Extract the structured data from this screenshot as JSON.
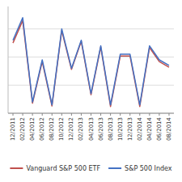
{
  "chart_data": {
    "type": "line",
    "categories": [
      "12/2011",
      "02/2012",
      "04/2012",
      "06/2012",
      "08/2012",
      "10/2012",
      "12/2012",
      "02/2013",
      "04/2013",
      "06/2013",
      "08/2013",
      "10/2013",
      "12/2013",
      "02/2014",
      "04/2014",
      "06/2014",
      "08/2014"
    ],
    "series": [
      {
        "name": "Vanguard S&P 500 ETF",
        "color": "#C0504D",
        "values": [
          7.5,
          11.5,
          -3.2,
          4.2,
          -3.7,
          9.7,
          2.8,
          7.8,
          -1.7,
          6.8,
          -3.8,
          5.2,
          5.2,
          -3.8,
          6.7,
          4.2,
          3.2
        ]
      },
      {
        "name": "S&P 500 Index",
        "color": "#4472C4",
        "values": [
          8.0,
          12.0,
          -3.0,
          4.5,
          -3.5,
          10.0,
          3.0,
          8.0,
          -1.5,
          7.0,
          -3.5,
          5.5,
          5.5,
          -3.5,
          7.0,
          4.5,
          3.5
        ]
      }
    ],
    "ylim": [
      -5,
      14
    ],
    "yticks": [
      -5,
      0,
      5,
      10
    ],
    "grid": true,
    "tick_labels": "x",
    "legend": "bottom"
  }
}
